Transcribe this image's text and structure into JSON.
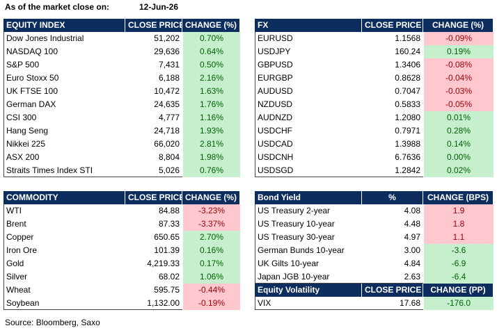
{
  "header": {
    "label": "As of the market close on:",
    "date": "12-Jun-26"
  },
  "tables": [
    {
      "columns": [
        "EQUITY INDEX",
        "CLOSE PRICE",
        "CHANGE (%)"
      ],
      "positive_fill": "#c6efce",
      "negative_fill": "#ffc7ce",
      "rows": [
        [
          "Dow Jones Industrial",
          "51,202",
          "0.70%"
        ],
        [
          "NASDAQ 100",
          "29,636",
          "0.64%"
        ],
        [
          "S&P 500",
          "7,431",
          "0.50%"
        ],
        [
          "Euro Stoxx 50",
          "6,188",
          "2.16%"
        ],
        [
          "UK FTSE 100",
          "10,472",
          "1.63%"
        ],
        [
          "German DAX",
          "24,635",
          "1.76%"
        ],
        [
          "CSI 300",
          "4,777",
          "1.16%"
        ],
        [
          "Hang Seng",
          "24,718",
          "1.93%"
        ],
        [
          "Nikkei 225",
          "66,020",
          "2.81%"
        ],
        [
          "ASX 200",
          "8,804",
          "1.98%"
        ],
        [
          "Straits Times Index STI",
          "5,026",
          "0.76%"
        ]
      ]
    },
    {
      "columns": [
        "FX",
        "CLOSE PRICE",
        "CHANGE (%)"
      ],
      "positive_fill": "#c6efce",
      "negative_fill": "#ffc7ce",
      "rows": [
        [
          "EURUSD",
          "1.1568",
          "-0.09%"
        ],
        [
          "USDJPY",
          "160.24",
          "0.19%"
        ],
        [
          "GBPUSD",
          "1.3406",
          "-0.08%"
        ],
        [
          "EURGBP",
          "0.8628",
          "-0.04%"
        ],
        [
          "AUDUSD",
          "0.7047",
          "-0.03%"
        ],
        [
          "NZDUSD",
          "0.5833",
          "-0.05%"
        ],
        [
          "AUDNZD",
          "1.2080",
          "0.01%"
        ],
        [
          "USDCHF",
          "0.7971",
          "0.28%"
        ],
        [
          "USDCAD",
          "1.3988",
          "0.14%"
        ],
        [
          "USDCNH",
          "6.7636",
          "0.00%"
        ],
        [
          "USDSGD",
          "1.2842",
          "0.02%"
        ]
      ]
    },
    {
      "columns": [
        "COMMODITY",
        "CLOSE PRICE",
        "CHANGE (%)"
      ],
      "positive_fill": "#c6efce",
      "negative_fill": "#ffc7ce",
      "rows": [
        [
          "WTI",
          "84.88",
          "-3.23%"
        ],
        [
          "Brent",
          "87.33",
          "-3.37%"
        ],
        [
          "Copper",
          "650.65",
          "2.70%"
        ],
        [
          "Iron Ore",
          "101.39",
          "0.16%"
        ],
        [
          "Gold",
          "4,219.33",
          "0.17%"
        ],
        [
          "Silver",
          "68.02",
          "1.06%"
        ],
        [
          "Wheat",
          "595.75",
          "-0.44%"
        ],
        [
          "Soybean",
          "1,132.00",
          "-0.19%"
        ]
      ]
    },
    {
      "columns": [
        "Bond Yield",
        "%",
        "CHANGE (BPS)"
      ],
      "positive_fill": "#ffc7ce",
      "negative_fill": "#c6efce",
      "rows": [
        [
          "US Treasury 2-year",
          "4.08",
          "1.9"
        ],
        [
          "US Treasury 10-year",
          "4.48",
          "1.8"
        ],
        [
          "US Treasury 30-year",
          "4.97",
          "1.1"
        ],
        [
          "German Bunds 10-year",
          "3.00",
          "-3.6"
        ],
        [
          "UK Gilts 10-year",
          "4.84",
          "-6.9"
        ],
        [
          "Japan JGB 10-year",
          "2.63",
          "-6.4"
        ]
      ]
    },
    {
      "columns": [
        "Equity Volatility",
        "CLOSE PRICE",
        "CHANGE (PP)"
      ],
      "positive_fill": "#ffc7ce",
      "negative_fill": "#c6efce",
      "rows": [
        [
          "VIX",
          "17.68",
          "-176.0"
        ]
      ]
    }
  ],
  "source": "Source: Bloomberg, Saxo"
}
